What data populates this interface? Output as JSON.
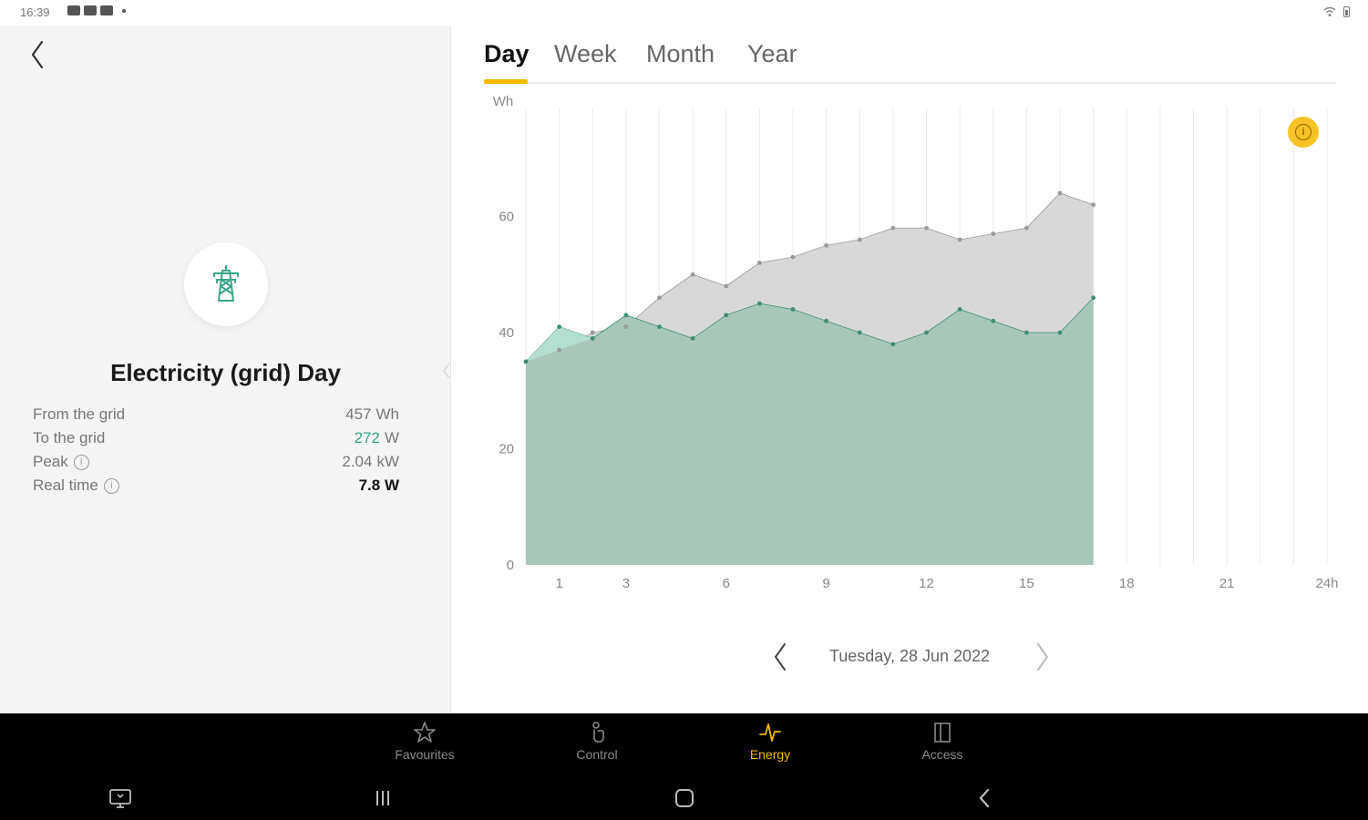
{
  "status_bar": {
    "time": "16:39"
  },
  "left_panel": {
    "title": "Electricity (grid) Day",
    "stats": [
      {
        "label": "From the grid",
        "value": "457",
        "unit": "Wh"
      },
      {
        "label": "To the grid",
        "value": "272",
        "unit": "W"
      },
      {
        "label": "Peak",
        "value": "2.04",
        "unit": "kW"
      },
      {
        "label": "Real time",
        "value": "7.8 W"
      }
    ]
  },
  "tabs": [
    {
      "label": "Day",
      "active": true
    },
    {
      "label": "Week",
      "active": false
    },
    {
      "label": "Month",
      "active": false
    },
    {
      "label": "Year",
      "active": false
    }
  ],
  "chart_data": {
    "type": "area",
    "ylabel": "Wh",
    "ylim": [
      0,
      80
    ],
    "xlim": [
      0,
      24
    ],
    "x_ticks": [
      "1",
      "3",
      "6",
      "9",
      "12",
      "15",
      "18",
      "21",
      "24h"
    ],
    "x_tick_values": [
      1,
      3,
      6,
      9,
      12,
      15,
      18,
      21,
      24
    ],
    "y_ticks": [
      0,
      20,
      40,
      60
    ],
    "grid_x": true,
    "x": [
      0,
      1,
      2,
      3,
      4,
      5,
      6,
      7,
      8,
      9,
      10,
      11,
      12,
      13,
      14,
      15,
      16,
      17
    ],
    "series": [
      {
        "color": "#d8d8d8",
        "values": [
          35,
          37,
          40,
          41,
          46,
          50,
          48,
          52,
          53,
          55,
          56,
          58,
          58,
          56,
          57,
          58,
          64,
          62
        ]
      },
      {
        "color": "#a9c7b9",
        "values": [
          35,
          41,
          39,
          43,
          41,
          39,
          43,
          45,
          44,
          42,
          40,
          38,
          40,
          44,
          42,
          40,
          40,
          46
        ]
      }
    ],
    "colors": {
      "line_gray": "#9a9a9a",
      "line_green": "#3f8f76",
      "highlight": "#b3dfd0"
    }
  },
  "date_nav": {
    "date": "Tuesday, 28 Jun 2022"
  },
  "bottom_nav": {
    "items": [
      {
        "label": "Favourites",
        "icon": "star-icon",
        "active": false
      },
      {
        "label": "Control",
        "icon": "hand-icon",
        "active": false
      },
      {
        "label": "Energy",
        "icon": "energy-pulse-icon",
        "active": true
      },
      {
        "label": "Access",
        "icon": "door-icon",
        "active": false
      }
    ]
  },
  "colors": {
    "accent": "#f5b800",
    "brand_green": "#3aa58a"
  }
}
